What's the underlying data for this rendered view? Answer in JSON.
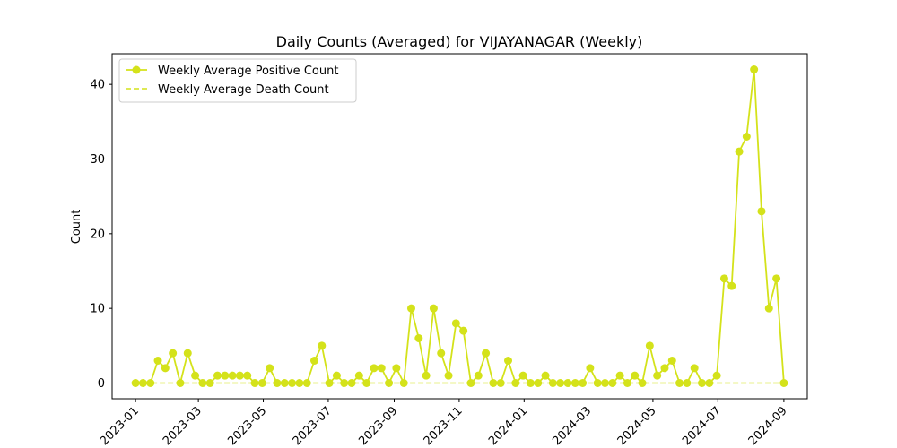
{
  "chart_data": {
    "type": "line",
    "title": "Daily Counts (Averaged) for VIJAYANAGAR (Weekly)",
    "xlabel": "",
    "ylabel": "Count",
    "ylim": [
      -2.1,
      44.1
    ],
    "xlim": [
      "2022-12-10",
      "2024-09-23"
    ],
    "grid": false,
    "legend_position": "top-left",
    "x_ticks": [
      "2023-01",
      "2023-03",
      "2023-05",
      "2023-07",
      "2023-09",
      "2023-11",
      "2024-01",
      "2024-03",
      "2024-05",
      "2024-07",
      "2024-09"
    ],
    "x_tick_dates": [
      "2023-01-01",
      "2023-03-01",
      "2023-05-01",
      "2023-07-01",
      "2023-09-01",
      "2023-11-01",
      "2024-01-01",
      "2024-03-01",
      "2024-05-01",
      "2024-07-01",
      "2024-09-01"
    ],
    "y_ticks": [
      0,
      10,
      20,
      30,
      40
    ],
    "series": [
      {
        "name": "Weekly Average Positive Count",
        "style": "solid-line-circle-markers",
        "color": "#d4e21a",
        "points": [
          [
            "2023-01-01",
            0
          ],
          [
            "2023-01-08",
            0
          ],
          [
            "2023-01-15",
            0
          ],
          [
            "2023-01-22",
            3
          ],
          [
            "2023-01-29",
            2
          ],
          [
            "2023-02-05",
            4
          ],
          [
            "2023-02-12",
            0
          ],
          [
            "2023-02-19",
            4
          ],
          [
            "2023-02-26",
            1
          ],
          [
            "2023-03-05",
            0
          ],
          [
            "2023-03-12",
            0
          ],
          [
            "2023-03-19",
            1
          ],
          [
            "2023-03-26",
            1
          ],
          [
            "2023-04-02",
            1
          ],
          [
            "2023-04-09",
            1
          ],
          [
            "2023-04-16",
            1
          ],
          [
            "2023-04-23",
            0
          ],
          [
            "2023-04-30",
            0
          ],
          [
            "2023-05-07",
            2
          ],
          [
            "2023-05-14",
            0
          ],
          [
            "2023-05-21",
            0
          ],
          [
            "2023-05-28",
            0
          ],
          [
            "2023-06-04",
            0
          ],
          [
            "2023-06-11",
            0
          ],
          [
            "2023-06-18",
            3
          ],
          [
            "2023-06-25",
            5
          ],
          [
            "2023-07-02",
            0
          ],
          [
            "2023-07-09",
            1
          ],
          [
            "2023-07-16",
            0
          ],
          [
            "2023-07-23",
            0
          ],
          [
            "2023-07-30",
            1
          ],
          [
            "2023-08-06",
            0
          ],
          [
            "2023-08-13",
            2
          ],
          [
            "2023-08-20",
            2
          ],
          [
            "2023-08-27",
            0
          ],
          [
            "2023-09-03",
            2
          ],
          [
            "2023-09-10",
            0
          ],
          [
            "2023-09-17",
            10
          ],
          [
            "2023-09-24",
            6
          ],
          [
            "2023-10-01",
            1
          ],
          [
            "2023-10-08",
            10
          ],
          [
            "2023-10-15",
            4
          ],
          [
            "2023-10-22",
            1
          ],
          [
            "2023-10-29",
            8
          ],
          [
            "2023-11-05",
            7
          ],
          [
            "2023-11-12",
            0
          ],
          [
            "2023-11-19",
            1
          ],
          [
            "2023-11-26",
            4
          ],
          [
            "2023-12-03",
            0
          ],
          [
            "2023-12-10",
            0
          ],
          [
            "2023-12-17",
            3
          ],
          [
            "2023-12-24",
            0
          ],
          [
            "2023-12-31",
            1
          ],
          [
            "2024-01-07",
            0
          ],
          [
            "2024-01-14",
            0
          ],
          [
            "2024-01-21",
            1
          ],
          [
            "2024-01-28",
            0
          ],
          [
            "2024-02-04",
            0
          ],
          [
            "2024-02-11",
            0
          ],
          [
            "2024-02-18",
            0
          ],
          [
            "2024-02-25",
            0
          ],
          [
            "2024-03-03",
            2
          ],
          [
            "2024-03-10",
            0
          ],
          [
            "2024-03-17",
            0
          ],
          [
            "2024-03-24",
            0
          ],
          [
            "2024-03-31",
            1
          ],
          [
            "2024-04-07",
            0
          ],
          [
            "2024-04-14",
            1
          ],
          [
            "2024-04-21",
            0
          ],
          [
            "2024-04-28",
            5
          ],
          [
            "2024-05-05",
            1
          ],
          [
            "2024-05-12",
            2
          ],
          [
            "2024-05-19",
            3
          ],
          [
            "2024-05-26",
            0
          ],
          [
            "2024-06-02",
            0
          ],
          [
            "2024-06-09",
            2
          ],
          [
            "2024-06-16",
            0
          ],
          [
            "2024-06-23",
            0
          ],
          [
            "2024-06-30",
            1
          ],
          [
            "2024-07-07",
            14
          ],
          [
            "2024-07-14",
            13
          ],
          [
            "2024-07-21",
            31
          ],
          [
            "2024-07-28",
            33
          ],
          [
            "2024-08-04",
            42
          ],
          [
            "2024-08-11",
            23
          ],
          [
            "2024-08-18",
            10
          ],
          [
            "2024-08-25",
            14
          ],
          [
            "2024-09-01",
            0
          ]
        ]
      },
      {
        "name": "Weekly Average Death Count",
        "style": "dashed-line",
        "color": "#d4e21a",
        "points": [
          [
            "2023-01-01",
            0
          ],
          [
            "2024-09-01",
            0
          ]
        ]
      }
    ]
  }
}
